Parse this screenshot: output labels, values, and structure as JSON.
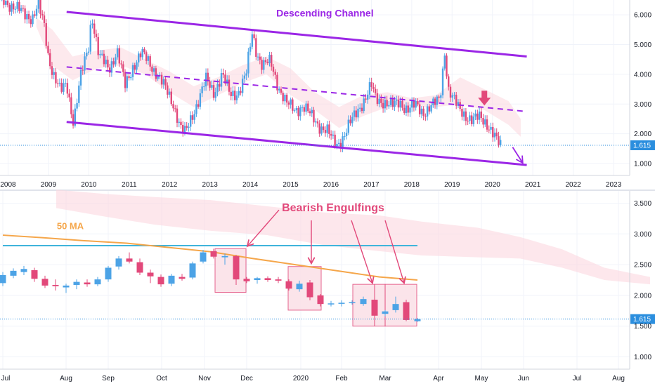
{
  "colors": {
    "up": "#4ca3e6",
    "down": "#e2487a",
    "channel": "#9b26e6",
    "ichimoku_cloud": "#fbd7df",
    "ichimoku_cloud_blue": "#dceefa",
    "ma50": "#f5a64a",
    "resistance": "#3fb4db",
    "current_price_bg": "#2b8ede",
    "box_fill": "#fbe0e7",
    "box_stroke": "#e2487a",
    "arrow_pink": "#e2487a",
    "arrow_purple": "#9b26e6",
    "background": "#ffffff",
    "grid": "#f0f3fa",
    "axis_text": "#131722"
  },
  "chart_data": [
    {
      "id": "weekly",
      "type": "candlestick",
      "x_labels": [
        "2008",
        "2009",
        "2010",
        "2011",
        "2012",
        "2013",
        "2014",
        "2015",
        "2016",
        "2017",
        "2018",
        "2019",
        "2020",
        "2021",
        "2022",
        "2023"
      ],
      "x_range": [
        2007.8,
        2023.4
      ],
      "y_ticks": [
        "1.000",
        "2.000",
        "3.000",
        "4.000",
        "5.000",
        "6.000"
      ],
      "y_tick_values": [
        1,
        2,
        3,
        4,
        5,
        6
      ],
      "ylim": [
        0.6,
        6.5
      ],
      "current_price": 1.615,
      "current_price_label": "1.615",
      "price_path": [
        [
          2007.8,
          6.6
        ],
        [
          2008.2,
          6.2
        ],
        [
          2008.6,
          5.9
        ],
        [
          2008.75,
          6.3
        ],
        [
          2008.9,
          5.6
        ],
        [
          2009.0,
          4.6
        ],
        [
          2009.15,
          3.9
        ],
        [
          2009.3,
          3.4
        ],
        [
          2009.45,
          3.7
        ],
        [
          2009.62,
          2.4
        ],
        [
          2009.8,
          3.9
        ],
        [
          2010.0,
          5.0
        ],
        [
          2010.07,
          6.05
        ],
        [
          2010.25,
          4.6
        ],
        [
          2010.5,
          4.2
        ],
        [
          2010.7,
          4.8
        ],
        [
          2010.9,
          3.6
        ],
        [
          2011.1,
          4.3
        ],
        [
          2011.3,
          4.7
        ],
        [
          2011.5,
          4.4
        ],
        [
          2011.7,
          4.0
        ],
        [
          2011.9,
          3.5
        ],
        [
          2012.1,
          3.0
        ],
        [
          2012.3,
          2.1
        ],
        [
          2012.4,
          2.0
        ],
        [
          2012.5,
          2.4
        ],
        [
          2012.7,
          3.1
        ],
        [
          2012.9,
          3.8
        ],
        [
          2013.1,
          3.4
        ],
        [
          2013.3,
          4.0
        ],
        [
          2013.5,
          3.3
        ],
        [
          2013.7,
          3.4
        ],
        [
          2013.9,
          4.0
        ],
        [
          2014.05,
          5.4
        ],
        [
          2014.15,
          4.8
        ],
        [
          2014.3,
          4.3
        ],
        [
          2014.5,
          4.4
        ],
        [
          2014.7,
          3.6
        ],
        [
          2014.9,
          3.0
        ],
        [
          2015.1,
          2.8
        ],
        [
          2015.3,
          2.95
        ],
        [
          2015.5,
          2.6
        ],
        [
          2015.7,
          2.3
        ],
        [
          2015.9,
          2.1
        ],
        [
          2016.05,
          1.75
        ],
        [
          2016.15,
          1.65
        ],
        [
          2016.3,
          1.9
        ],
        [
          2016.5,
          2.4
        ],
        [
          2016.7,
          2.9
        ],
        [
          2016.85,
          3.2
        ],
        [
          2017.0,
          3.6
        ],
        [
          2017.1,
          3.2
        ],
        [
          2017.3,
          3.1
        ],
        [
          2017.5,
          2.9
        ],
        [
          2017.7,
          3.1
        ],
        [
          2017.9,
          2.8
        ],
        [
          2018.1,
          2.95
        ],
        [
          2018.3,
          2.75
        ],
        [
          2018.5,
          2.9
        ],
        [
          2018.7,
          3.2
        ],
        [
          2018.82,
          4.85
        ],
        [
          2018.9,
          3.5
        ],
        [
          2019.0,
          3.2
        ],
        [
          2019.15,
          2.9
        ],
        [
          2019.3,
          2.7
        ],
        [
          2019.5,
          2.4
        ],
        [
          2019.7,
          2.6
        ],
        [
          2019.85,
          2.4
        ],
        [
          2020.0,
          2.0
        ],
        [
          2020.1,
          1.75
        ],
        [
          2020.2,
          1.62
        ]
      ],
      "ichimoku_cloud": [
        [
          2008.7,
          5.6,
          5.9
        ],
        [
          2009.1,
          4.3,
          5.5
        ],
        [
          2009.6,
          3.8,
          4.6
        ],
        [
          2010.2,
          4.2,
          4.8
        ],
        [
          2010.8,
          4.3,
          4.9
        ],
        [
          2011.4,
          4.0,
          4.5
        ],
        [
          2012.0,
          3.4,
          4.1
        ],
        [
          2012.6,
          2.9,
          3.6
        ],
        [
          2013.2,
          3.3,
          3.9
        ],
        [
          2013.8,
          3.7,
          4.3
        ],
        [
          2014.4,
          4.0,
          4.6
        ],
        [
          2015.0,
          3.3,
          4.2
        ],
        [
          2015.6,
          2.8,
          3.4
        ],
        [
          2016.2,
          2.2,
          2.9
        ],
        [
          2016.8,
          2.6,
          3.3
        ],
        [
          2017.4,
          2.9,
          3.4
        ],
        [
          2018.0,
          2.9,
          3.2
        ],
        [
          2018.6,
          2.9,
          3.3
        ],
        [
          2019.2,
          3.0,
          3.9
        ],
        [
          2019.8,
          2.8,
          3.5
        ],
        [
          2020.4,
          2.3,
          3.1
        ],
        [
          2020.7,
          1.9,
          2.5
        ]
      ],
      "channel_upper": [
        [
          2009.45,
          6.1
        ],
        [
          2020.85,
          4.6
        ]
      ],
      "channel_mid": [
        [
          2009.45,
          4.25
        ],
        [
          2020.85,
          2.75
        ]
      ],
      "channel_lower": [
        [
          2009.45,
          2.4
        ],
        [
          2020.85,
          0.95
        ]
      ],
      "annotations": [
        {
          "text": "Descending Channel",
          "x": 2015.85,
          "y": 5.95
        }
      ],
      "pink_arrow": {
        "x": 2019.8,
        "y_from": 3.45,
        "y_to": 2.95
      },
      "purple_arrow": {
        "x_from": 2020.5,
        "y_from": 1.55,
        "x_to": 2020.75,
        "y_to": 1.02
      }
    },
    {
      "id": "daily",
      "type": "candlestick",
      "x_labels": [
        "Jul",
        "Aug",
        "Sep",
        "Oct",
        "Nov",
        "Dec",
        "2020",
        "Feb",
        "Mar",
        "Apr",
        "May",
        "Jun",
        "Jul",
        "Aug"
      ],
      "x_label_values": [
        4,
        94,
        154,
        230,
        291,
        351,
        428,
        486,
        548,
        624,
        685,
        745,
        821,
        880
      ],
      "y_ticks": [
        "1.000",
        "1.500",
        "2.000",
        "2.500",
        "3.000",
        "3.500"
      ],
      "y_tick_values": [
        1.0,
        1.5,
        2.0,
        2.5,
        3.0,
        3.5
      ],
      "ylim": [
        0.8,
        3.7
      ],
      "current_price": 1.615,
      "current_price_label": "1.615",
      "candles": [
        {
          "x": 4,
          "o": 2.2,
          "h": 2.38,
          "l": 2.15,
          "c": 2.33
        },
        {
          "x": 19,
          "o": 2.32,
          "h": 2.44,
          "l": 2.28,
          "c": 2.4
        },
        {
          "x": 34,
          "o": 2.38,
          "h": 2.48,
          "l": 2.33,
          "c": 2.43
        },
        {
          "x": 49,
          "o": 2.41,
          "h": 2.45,
          "l": 2.22,
          "c": 2.27
        },
        {
          "x": 64,
          "o": 2.27,
          "h": 2.32,
          "l": 2.12,
          "c": 2.16
        },
        {
          "x": 79,
          "o": 2.17,
          "h": 2.26,
          "l": 2.08,
          "c": 2.15
        },
        {
          "x": 94,
          "o": 2.13,
          "h": 2.19,
          "l": 2.04,
          "c": 2.16
        },
        {
          "x": 109,
          "o": 2.17,
          "h": 2.26,
          "l": 2.1,
          "c": 2.22
        },
        {
          "x": 124,
          "o": 2.21,
          "h": 2.26,
          "l": 2.14,
          "c": 2.18
        },
        {
          "x": 139,
          "o": 2.18,
          "h": 2.3,
          "l": 2.15,
          "c": 2.26
        },
        {
          "x": 154,
          "o": 2.26,
          "h": 2.48,
          "l": 2.22,
          "c": 2.45
        },
        {
          "x": 169,
          "o": 2.47,
          "h": 2.64,
          "l": 2.42,
          "c": 2.6
        },
        {
          "x": 184,
          "o": 2.6,
          "h": 2.7,
          "l": 2.52,
          "c": 2.55
        },
        {
          "x": 199,
          "o": 2.54,
          "h": 2.6,
          "l": 2.33,
          "c": 2.37
        },
        {
          "x": 214,
          "o": 2.37,
          "h": 2.42,
          "l": 2.2,
          "c": 2.31
        },
        {
          "x": 229,
          "o": 2.3,
          "h": 2.34,
          "l": 2.14,
          "c": 2.18
        },
        {
          "x": 244,
          "o": 2.19,
          "h": 2.35,
          "l": 2.15,
          "c": 2.32
        },
        {
          "x": 259,
          "o": 2.3,
          "h": 2.35,
          "l": 2.24,
          "c": 2.27
        },
        {
          "x": 274,
          "o": 2.29,
          "h": 2.55,
          "l": 2.26,
          "c": 2.52
        },
        {
          "x": 289,
          "o": 2.55,
          "h": 2.74,
          "l": 2.52,
          "c": 2.7
        },
        {
          "x": 304,
          "o": 2.72,
          "h": 2.76,
          "l": 2.6,
          "c": 2.63
        },
        {
          "x": 320,
          "o": 2.62,
          "h": 2.68,
          "l": 2.5,
          "c": 2.64
        },
        {
          "x": 336,
          "o": 2.64,
          "h": 2.66,
          "l": 2.17,
          "c": 2.26
        },
        {
          "x": 351,
          "o": 2.27,
          "h": 2.3,
          "l": 2.2,
          "c": 2.23
        },
        {
          "x": 366,
          "o": 2.25,
          "h": 2.3,
          "l": 2.19,
          "c": 2.28
        },
        {
          "x": 381,
          "o": 2.28,
          "h": 2.31,
          "l": 2.22,
          "c": 2.25
        },
        {
          "x": 396,
          "o": 2.26,
          "h": 2.3,
          "l": 2.2,
          "c": 2.24
        },
        {
          "x": 411,
          "o": 2.23,
          "h": 2.26,
          "l": 2.08,
          "c": 2.11
        },
        {
          "x": 426,
          "o": 2.1,
          "h": 2.24,
          "l": 2.06,
          "c": 2.19
        },
        {
          "x": 441,
          "o": 2.21,
          "h": 2.25,
          "l": 1.92,
          "c": 1.97
        },
        {
          "x": 456,
          "o": 2.0,
          "h": 2.02,
          "l": 1.82,
          "c": 1.86
        },
        {
          "x": 471,
          "o": 1.86,
          "h": 1.91,
          "l": 1.82,
          "c": 1.87
        },
        {
          "x": 486,
          "o": 1.87,
          "h": 1.92,
          "l": 1.82,
          "c": 1.88
        },
        {
          "x": 501,
          "o": 1.88,
          "h": 1.92,
          "l": 1.85,
          "c": 1.89
        },
        {
          "x": 517,
          "o": 1.86,
          "h": 1.98,
          "l": 1.83,
          "c": 1.94
        },
        {
          "x": 533,
          "o": 1.93,
          "h": 1.96,
          "l": 1.62,
          "c": 1.67
        },
        {
          "x": 548,
          "o": 1.7,
          "h": 1.76,
          "l": 1.66,
          "c": 1.74
        },
        {
          "x": 563,
          "o": 1.76,
          "h": 1.98,
          "l": 1.72,
          "c": 1.86
        },
        {
          "x": 578,
          "o": 1.89,
          "h": 1.93,
          "l": 1.58,
          "c": 1.6
        },
        {
          "x": 594,
          "o": 1.58,
          "h": 1.63,
          "l": 1.57,
          "c": 1.615
        }
      ],
      "ma50": [
        [
          4,
          2.98
        ],
        [
          60,
          2.94
        ],
        [
          120,
          2.89
        ],
        [
          180,
          2.85
        ],
        [
          240,
          2.78
        ],
        [
          300,
          2.71
        ],
        [
          360,
          2.6
        ],
        [
          420,
          2.5
        ],
        [
          480,
          2.4
        ],
        [
          540,
          2.3
        ],
        [
          594,
          2.25
        ]
      ],
      "resistance": {
        "x_from": 4,
        "x_to": 594,
        "y": 2.81
      },
      "ichimoku_cloud": [
        [
          80,
          3.42,
          3.72
        ],
        [
          150,
          3.28,
          3.65
        ],
        [
          220,
          3.15,
          3.6
        ],
        [
          300,
          3.05,
          3.55
        ],
        [
          380,
          2.98,
          3.45
        ],
        [
          460,
          2.82,
          3.35
        ],
        [
          540,
          2.72,
          3.3
        ],
        [
          600,
          2.65,
          3.2
        ],
        [
          680,
          2.62,
          3.1
        ],
        [
          740,
          2.6,
          2.95
        ],
        [
          800,
          2.45,
          2.75
        ],
        [
          860,
          2.25,
          2.45
        ],
        [
          925,
          2.18,
          2.3
        ]
      ],
      "boxes": [
        {
          "x_from": 306,
          "x_to": 350,
          "y_from": 2.05,
          "y_to": 2.76
        },
        {
          "x_from": 410,
          "x_to": 457,
          "y_from": 1.76,
          "y_to": 2.47
        },
        {
          "x_from": 502,
          "x_to": 548,
          "y_from": 1.5,
          "y_to": 2.18
        },
        {
          "x_from": 548,
          "x_to": 593,
          "y_from": 1.5,
          "y_to": 2.18
        }
      ],
      "box_dividers": [
        {
          "x": 533,
          "y_from": 1.5,
          "y_to": 2.18
        }
      ],
      "annotations": [
        {
          "text": "Bearish Engulfings",
          "x": 474,
          "y": 3.37,
          "kind": "pink"
        },
        {
          "text": "50 MA",
          "x": 100,
          "y": 3.08,
          "kind": "orange"
        }
      ],
      "arrows": [
        {
          "from": [
            397,
            3.39
          ],
          "to": [
            352,
            2.8
          ]
        },
        {
          "from": [
            443,
            3.22
          ],
          "to": [
            443,
            2.52
          ]
        },
        {
          "from": [
            500,
            3.22
          ],
          "to": [
            530,
            2.2
          ]
        },
        {
          "from": [
            548,
            3.22
          ],
          "to": [
            575,
            2.2
          ]
        }
      ]
    }
  ]
}
